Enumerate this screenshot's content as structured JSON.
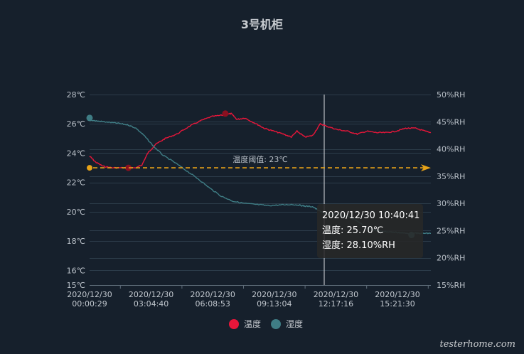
{
  "title": "3号机柜",
  "chart_data": {
    "type": "line",
    "title": "3号机柜",
    "x_labels": [
      [
        "2020/12/30",
        "00:00:29"
      ],
      [
        "2020/12/30",
        "03:04:40"
      ],
      [
        "2020/12/30",
        "06:08:53"
      ],
      [
        "2020/12/30",
        "09:13:04"
      ],
      [
        "2020/12/30",
        "12:17:16"
      ],
      [
        "2020/12/30",
        "15:21:30"
      ]
    ],
    "y_left": {
      "ticks": [
        "28℃",
        "26℃",
        "24℃",
        "22℃",
        "20℃",
        "18℃",
        "16℃",
        "15℃"
      ],
      "values": [
        28,
        26,
        24,
        22,
        20,
        18,
        16,
        15
      ],
      "ylim": [
        15,
        28
      ]
    },
    "y_right": {
      "ticks": [
        "50%RH",
        "45%RH",
        "40%RH",
        "35%RH",
        "30%RH",
        "25%RH",
        "20%RH",
        "15%RH"
      ],
      "values": [
        50,
        45,
        40,
        35,
        30,
        25,
        20,
        15
      ],
      "ylim": [
        15,
        50
      ]
    },
    "x_range_hours": [
      0,
      17.6
    ],
    "series": [
      {
        "name": "温度",
        "axis": "left",
        "color": "#e8163a",
        "points": [
          [
            0,
            23.8
          ],
          [
            0.3,
            23.4
          ],
          [
            0.7,
            23.1
          ],
          [
            1.2,
            23.0
          ],
          [
            1.8,
            23.0
          ],
          [
            2.4,
            23.0
          ],
          [
            2.7,
            23.2
          ],
          [
            3.0,
            24.0
          ],
          [
            3.4,
            24.6
          ],
          [
            3.9,
            25.0
          ],
          [
            4.5,
            25.3
          ],
          [
            5.1,
            25.8
          ],
          [
            5.7,
            26.2
          ],
          [
            6.3,
            26.5
          ],
          [
            6.9,
            26.6
          ],
          [
            7.3,
            26.7
          ],
          [
            7.6,
            26.3
          ],
          [
            8.0,
            26.4
          ],
          [
            8.6,
            26.0
          ],
          [
            9.0,
            25.7
          ],
          [
            9.5,
            25.5
          ],
          [
            10.0,
            25.3
          ],
          [
            10.4,
            25.1
          ],
          [
            10.7,
            25.5
          ],
          [
            11.1,
            25.1
          ],
          [
            11.5,
            25.2
          ],
          [
            11.9,
            26.0
          ],
          [
            12.3,
            25.8
          ],
          [
            12.8,
            25.6
          ],
          [
            13.3,
            25.5
          ],
          [
            13.8,
            25.3
          ],
          [
            14.3,
            25.5
          ],
          [
            14.8,
            25.4
          ],
          [
            15.3,
            25.4
          ],
          [
            15.8,
            25.5
          ],
          [
            16.3,
            25.7
          ],
          [
            16.8,
            25.7
          ],
          [
            17.3,
            25.5
          ],
          [
            17.6,
            25.4
          ]
        ]
      },
      {
        "name": "湿度",
        "axis": "right",
        "color": "#3f7d85",
        "points": [
          [
            0,
            45.3
          ],
          [
            0.5,
            45.1
          ],
          [
            1.0,
            44.9
          ],
          [
            1.5,
            44.7
          ],
          [
            2.0,
            44.4
          ],
          [
            2.4,
            43.8
          ],
          [
            2.8,
            42.5
          ],
          [
            3.3,
            40.5
          ],
          [
            3.8,
            38.8
          ],
          [
            4.4,
            37.5
          ],
          [
            5.0,
            36.0
          ],
          [
            5.6,
            34.5
          ],
          [
            6.2,
            32.8
          ],
          [
            6.8,
            31.3
          ],
          [
            7.4,
            30.4
          ],
          [
            8.0,
            30.0
          ],
          [
            8.6,
            29.8
          ],
          [
            9.2,
            29.6
          ],
          [
            9.8,
            29.7
          ],
          [
            10.4,
            29.8
          ],
          [
            10.8,
            29.7
          ],
          [
            11.1,
            29.5
          ],
          [
            11.5,
            29.4
          ],
          [
            11.9,
            28.5
          ],
          [
            12.3,
            27.9
          ],
          [
            12.8,
            28.0
          ],
          [
            13.3,
            27.6
          ],
          [
            13.8,
            26.8
          ],
          [
            14.3,
            25.5
          ],
          [
            14.8,
            25.0
          ],
          [
            15.3,
            24.8
          ],
          [
            15.8,
            24.7
          ],
          [
            16.3,
            24.5
          ],
          [
            16.8,
            24.5
          ],
          [
            17.2,
            24.5
          ],
          [
            17.6,
            24.5
          ]
        ]
      }
    ],
    "markers": [
      {
        "series": "温度",
        "x": 2.0,
        "y": 23.0,
        "color": "#8b1020"
      },
      {
        "series": "温度",
        "x": 7.0,
        "y": 26.7,
        "color": "#8b1020"
      },
      {
        "series": "湿度",
        "x": 0.0,
        "y": 45.7,
        "color": "#3f7d85"
      },
      {
        "series": "湿度",
        "x": 16.6,
        "y": 24.2,
        "color": "#3f7d85"
      }
    ],
    "markline": {
      "label": "温度阈值: 23℃",
      "value": 23,
      "color": "#e8a317"
    },
    "cursor_x": 12.1,
    "legend": [
      {
        "name": "温度",
        "color": "#e8163a"
      },
      {
        "name": "湿度",
        "color": "#3f7d85"
      }
    ],
    "legend_position": "bottom-center",
    "grid": true
  },
  "tooltip": {
    "time": "2020/12/30 10:40:41",
    "temp": "温度: 25.70℃",
    "hum": "湿度: 28.10%RH"
  },
  "watermark": "testerhome.com"
}
